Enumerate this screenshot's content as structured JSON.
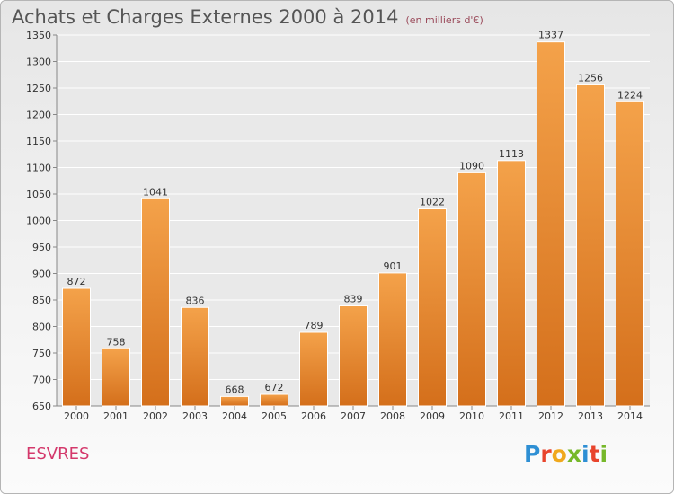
{
  "header": {
    "title": "Achats et Charges Externes 2000 à 2014",
    "subtitle": "(en milliers d'€)"
  },
  "footer": {
    "city": "ESVRES",
    "logo": "Proxiti"
  },
  "colors": {
    "bar_top": "#f4a24a",
    "bar_bottom": "#d46f1b",
    "grid": "#ffffff",
    "title": "#555555",
    "city": "#d4386b"
  },
  "chart_data": {
    "type": "bar",
    "title": "Achats et Charges Externes 2000 à 2014",
    "subtitle": "(en milliers d'€)",
    "xlabel": "",
    "ylabel": "",
    "categories": [
      "2000",
      "2001",
      "2002",
      "2003",
      "2004",
      "2005",
      "2006",
      "2007",
      "2008",
      "2009",
      "2010",
      "2011",
      "2012",
      "2013",
      "2014"
    ],
    "values": [
      872,
      758,
      1041,
      836,
      668,
      672,
      789,
      839,
      901,
      1022,
      1090,
      1113,
      1337,
      1256,
      1224
    ],
    "ylim": [
      650,
      1350
    ],
    "yticks": [
      650,
      700,
      750,
      800,
      850,
      900,
      950,
      1000,
      1050,
      1100,
      1150,
      1200,
      1250,
      1300,
      1350
    ],
    "grid": true,
    "data_labels": true
  }
}
